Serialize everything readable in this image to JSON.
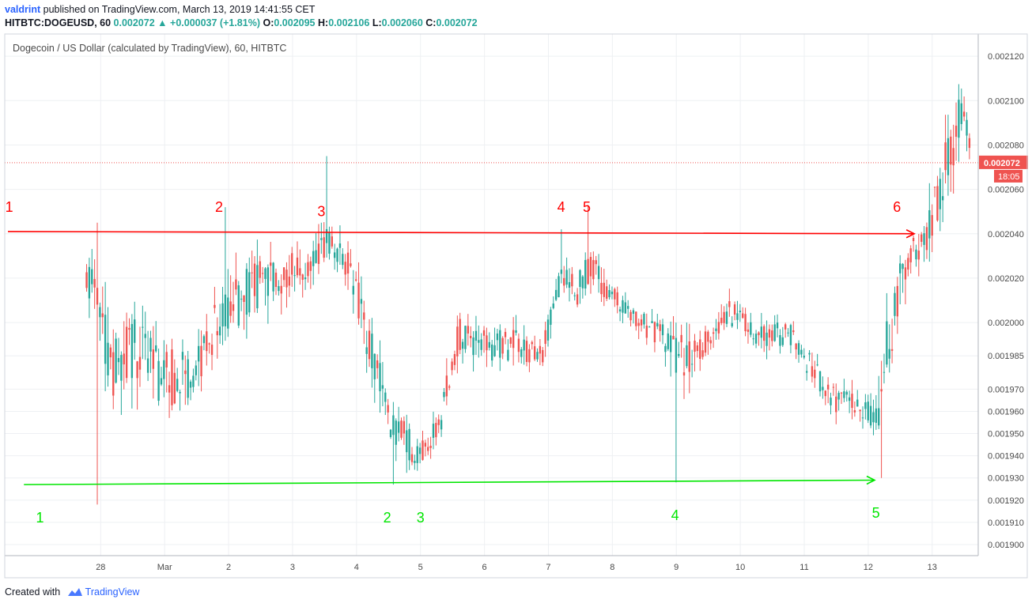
{
  "header": {
    "author": "valdrint",
    "published_text": "published on TradingView.com, March 13, 2019 14:41:55 CET",
    "symbol": "HITBTC:DOGEUSD, 60",
    "last": "0.002072",
    "up_arrow": "▲",
    "change": "+0.000037 (+1.81%)",
    "o_label": "O:",
    "o_value": "0.002095",
    "h_label": "H:",
    "h_value": "0.002106",
    "l_label": "L:",
    "l_value": "0.002060",
    "c_label": "C:",
    "c_value": "0.002072"
  },
  "footer": {
    "created_with": "Created with",
    "brand": "TradingView",
    "logo_icon": "tradingview-cloud-icon"
  },
  "colors": {
    "up": "#26a69a",
    "down": "#ef5350",
    "resistance": "#ff0000",
    "support": "#00e600",
    "grid": "#eef0f3",
    "axis_text": "#4a4a4a",
    "price_tag": "#ef5350"
  },
  "chart_data": {
    "type": "candlestick",
    "title": "Dogecoin / US Dollar (calculated by TradingView), 60, HITBTC",
    "timeframe": "60",
    "y_range": [
      0.001895,
      0.00213
    ],
    "y_ticks": [
      0.0019,
      0.00191,
      0.00192,
      0.00193,
      0.00194,
      0.00195,
      0.00196,
      0.00197,
      0.001985,
      0.002,
      0.00202,
      0.00204,
      0.00206,
      0.00208,
      0.0021,
      0.00212
    ],
    "y_tick_labels": [
      "0.001900",
      "0.001910",
      "0.001920",
      "0.001930",
      "0.001940",
      "0.001950",
      "0.001960",
      "0.001970",
      "0.001985",
      "0.002000",
      "0.002020",
      "0.002040",
      "0.002060",
      "0.002080",
      "0.002100",
      "0.002120"
    ],
    "x_range_days": [
      -1.5,
      13.72
    ],
    "x_tick_labels": [
      "28",
      "Mar",
      "2",
      "3",
      "4",
      "5",
      "6",
      "7",
      "8",
      "9",
      "10",
      "11",
      "12",
      "13"
    ],
    "x_tick_days": [
      0,
      1,
      2,
      3,
      4,
      5,
      6,
      7,
      8,
      9,
      10,
      11,
      12,
      13
    ],
    "current_price": {
      "value": 0.002072,
      "label": "0.002072",
      "countdown": "18:05"
    },
    "anchors": [
      {
        "day": -0.22,
        "o": 0.00201,
        "h": 0.002045,
        "l": 0.00199,
        "c": 0.00203
      },
      {
        "day": -0.05,
        "o": 0.00203,
        "h": 0.00204,
        "l": 0.00198,
        "c": 0.002
      },
      {
        "day": 0.15,
        "o": 0.00199,
        "h": 0.00202,
        "l": 0.00192,
        "c": 0.00197
      },
      {
        "day": 0.6,
        "o": 0.00198,
        "h": 0.00201,
        "l": 0.00196,
        "c": 0.002
      },
      {
        "day": 0.95,
        "o": 0.002,
        "h": 0.00203,
        "l": 0.00194,
        "c": 0.00195
      },
      {
        "day": 1.4,
        "o": 0.00196,
        "h": 0.00201,
        "l": 0.00194,
        "c": 0.00199
      },
      {
        "day": 1.9,
        "o": 0.002,
        "h": 0.002055,
        "l": 0.00199,
        "c": 0.00201
      },
      {
        "day": 2.4,
        "o": 0.002,
        "h": 0.00204,
        "l": 0.00196,
        "c": 0.00203
      },
      {
        "day": 2.75,
        "o": 0.00203,
        "h": 0.00204,
        "l": 0.00198,
        "c": 0.00201
      },
      {
        "day": 3.2,
        "o": 0.00201,
        "h": 0.00204,
        "l": 0.002,
        "c": 0.00204
      },
      {
        "day": 3.55,
        "o": 0.00204,
        "h": 0.002075,
        "l": 0.00202,
        "c": 0.00203
      },
      {
        "day": 3.9,
        "o": 0.00203,
        "h": 0.00204,
        "l": 0.00201,
        "c": 0.00202
      },
      {
        "day": 4.15,
        "o": 0.00202,
        "h": 0.00203,
        "l": 0.00196,
        "c": 0.00197
      },
      {
        "day": 4.55,
        "o": 0.00197,
        "h": 0.00199,
        "l": 0.001928,
        "c": 0.00194
      },
      {
        "day": 4.95,
        "o": 0.00194,
        "h": 0.00197,
        "l": 0.00193,
        "c": 0.00194
      },
      {
        "day": 5.3,
        "o": 0.00195,
        "h": 0.00198,
        "l": 0.00194,
        "c": 0.00196
      },
      {
        "day": 5.6,
        "o": 0.00198,
        "h": 0.00202,
        "l": 0.00197,
        "c": 0.00201
      },
      {
        "day": 6.0,
        "o": 0.002,
        "h": 0.00202,
        "l": 0.00197,
        "c": 0.00198
      },
      {
        "day": 6.5,
        "o": 0.00199,
        "h": 0.00201,
        "l": 0.00197,
        "c": 0.00199
      },
      {
        "day": 6.9,
        "o": 0.00198,
        "h": 0.002,
        "l": 0.00197,
        "c": 0.00199
      },
      {
        "day": 7.2,
        "o": 0.00201,
        "h": 0.00204,
        "l": 0.002,
        "c": 0.00203
      },
      {
        "day": 7.45,
        "o": 0.00202,
        "h": 0.00203,
        "l": 0.002,
        "c": 0.00201
      },
      {
        "day": 7.65,
        "o": 0.00202,
        "h": 0.00205,
        "l": 0.002,
        "c": 0.00203
      },
      {
        "day": 7.9,
        "o": 0.00202,
        "h": 0.00203,
        "l": 0.002,
        "c": 0.00201
      },
      {
        "day": 8.4,
        "o": 0.002,
        "h": 0.00201,
        "l": 0.00198,
        "c": 0.002
      },
      {
        "day": 8.8,
        "o": 0.002,
        "h": 0.00202,
        "l": 0.00198,
        "c": 0.00199
      },
      {
        "day": 8.98,
        "o": 0.00199,
        "h": 0.002,
        "l": 0.00193,
        "c": 0.00198
      },
      {
        "day": 9.3,
        "o": 0.00198,
        "h": 0.002,
        "l": 0.00197,
        "c": 0.00199
      },
      {
        "day": 9.8,
        "o": 0.002,
        "h": 0.00203,
        "l": 0.00199,
        "c": 0.00201
      },
      {
        "day": 10.3,
        "o": 0.002,
        "h": 0.00202,
        "l": 0.00198,
        "c": 0.00199
      },
      {
        "day": 10.8,
        "o": 0.00199,
        "h": 0.00201,
        "l": 0.00198,
        "c": 0.002
      },
      {
        "day": 11.1,
        "o": 0.00199,
        "h": 0.002,
        "l": 0.00196,
        "c": 0.00197
      },
      {
        "day": 11.5,
        "o": 0.00197,
        "h": 0.00198,
        "l": 0.00195,
        "c": 0.00196
      },
      {
        "day": 11.85,
        "o": 0.00197,
        "h": 0.00198,
        "l": 0.00194,
        "c": 0.00196
      },
      {
        "day": 12.1,
        "o": 0.00196,
        "h": 0.00197,
        "l": 0.001935,
        "c": 0.00195
      },
      {
        "day": 12.3,
        "o": 0.00196,
        "h": 0.00204,
        "l": 0.00195,
        "c": 0.00202
      },
      {
        "day": 12.6,
        "o": 0.00202,
        "h": 0.00205,
        "l": 0.00201,
        "c": 0.00204
      },
      {
        "day": 12.95,
        "o": 0.00204,
        "h": 0.00207,
        "l": 0.00202,
        "c": 0.00204
      },
      {
        "day": 13.2,
        "o": 0.00204,
        "h": 0.00212,
        "l": 0.00203,
        "c": 0.0021
      },
      {
        "day": 13.45,
        "o": 0.0021,
        "h": 0.00212,
        "l": 0.00207,
        "c": 0.00209
      },
      {
        "day": 13.62,
        "o": 0.00209,
        "h": 0.00211,
        "l": 0.00206,
        "c": 0.002072
      }
    ],
    "candle_step_days": 0.0417,
    "spikes": [
      {
        "day": -0.05,
        "h": 0.002045,
        "l": 0.001918
      },
      {
        "day": 1.95,
        "h": 0.002052
      },
      {
        "day": 3.55,
        "h": 0.002075
      },
      {
        "day": 4.58,
        "l": 0.001927
      },
      {
        "day": 7.2,
        "h": 0.002042
      },
      {
        "day": 7.62,
        "h": 0.002053
      },
      {
        "day": 8.98,
        "l": 0.001928
      },
      {
        "day": 12.2,
        "l": 0.00193
      }
    ],
    "resistance_line": {
      "from": [
        -1.45,
        0.002041
      ],
      "to": [
        12.72,
        0.00204
      ]
    },
    "support_line": {
      "from": [
        -1.2,
        0.001927
      ],
      "to": [
        12.1,
        0.001929
      ]
    },
    "annotations": {
      "resistance": [
        {
          "text": "1",
          "day": -1.43,
          "price": 0.002047
        },
        {
          "text": "2",
          "day": 1.85,
          "price": 0.002047
        },
        {
          "text": "3",
          "day": 3.45,
          "price": 0.002045
        },
        {
          "text": "4",
          "day": 7.2,
          "price": 0.002047
        },
        {
          "text": "5",
          "day": 7.6,
          "price": 0.002047
        },
        {
          "text": "6",
          "day": 12.45,
          "price": 0.002047
        }
      ],
      "support": [
        {
          "text": "1",
          "day": -0.95,
          "price": 0.001915
        },
        {
          "text": "2",
          "day": 4.48,
          "price": 0.001915
        },
        {
          "text": "3",
          "day": 5.0,
          "price": 0.001915
        },
        {
          "text": "4",
          "day": 8.98,
          "price": 0.001916
        },
        {
          "text": "5",
          "day": 12.12,
          "price": 0.001917
        }
      ]
    }
  }
}
